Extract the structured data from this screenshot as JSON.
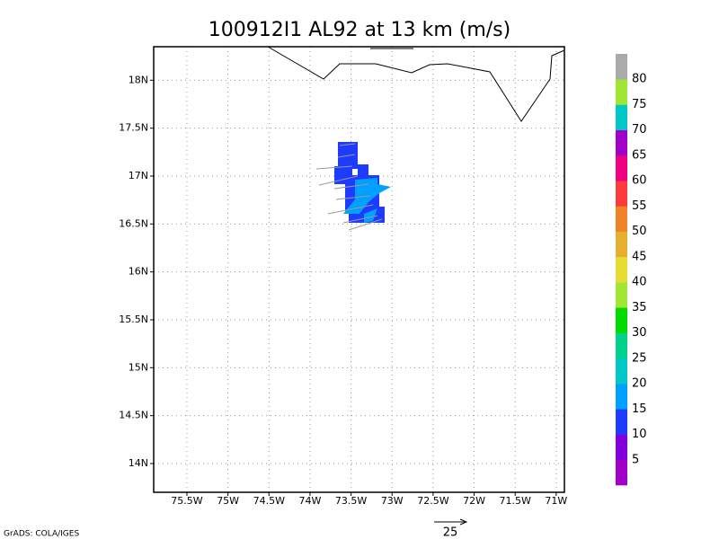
{
  "title": "100912I1 AL92 at 13 km (m/s)",
  "map": {
    "lonlim": [
      -75.905,
      -70.9
    ],
    "latlim": [
      13.7,
      18.35
    ],
    "lon_ticks": [
      {
        "value": -75.5,
        "label": "75.5W"
      },
      {
        "value": -75,
        "label": "75W"
      },
      {
        "value": -74.5,
        "label": "74.5W"
      },
      {
        "value": -74,
        "label": "74W"
      },
      {
        "value": -73.5,
        "label": "73.5W"
      },
      {
        "value": -73,
        "label": "73W"
      },
      {
        "value": -72.5,
        "label": "72.5W"
      },
      {
        "value": -72,
        "label": "72W"
      },
      {
        "value": -71.5,
        "label": "71.5W"
      },
      {
        "value": -71,
        "label": "71W"
      }
    ],
    "lat_ticks": [
      {
        "value": 14,
        "label": "14N"
      },
      {
        "value": 14.5,
        "label": "14.5N"
      },
      {
        "value": 15,
        "label": "15N"
      },
      {
        "value": 15.5,
        "label": "15.5N"
      },
      {
        "value": 16,
        "label": "16N"
      },
      {
        "value": 16.5,
        "label": "16.5N"
      },
      {
        "value": 17,
        "label": "17N"
      },
      {
        "value": 17.5,
        "label": "17.5N"
      },
      {
        "value": 18,
        "label": "18N"
      }
    ],
    "grid": true
  },
  "colorbar": {
    "labels": [
      5,
      10,
      15,
      20,
      25,
      30,
      35,
      40,
      45,
      50,
      55,
      60,
      65,
      70,
      75,
      80
    ],
    "colors": [
      "#a000c8",
      "#8200dc",
      "#1e3cff",
      "#00a0ff",
      "#00c8c8",
      "#00d28c",
      "#00dc00",
      "#a0e632",
      "#e6dc32",
      "#e6af2d",
      "#f08228",
      "#fa3c3c",
      "#f00082",
      "#a000c8",
      "#00c8c8",
      "#a0e632",
      "#aaaaaa"
    ]
  },
  "vector_key": "25",
  "footer": "GrADS: COLA/IGES"
}
